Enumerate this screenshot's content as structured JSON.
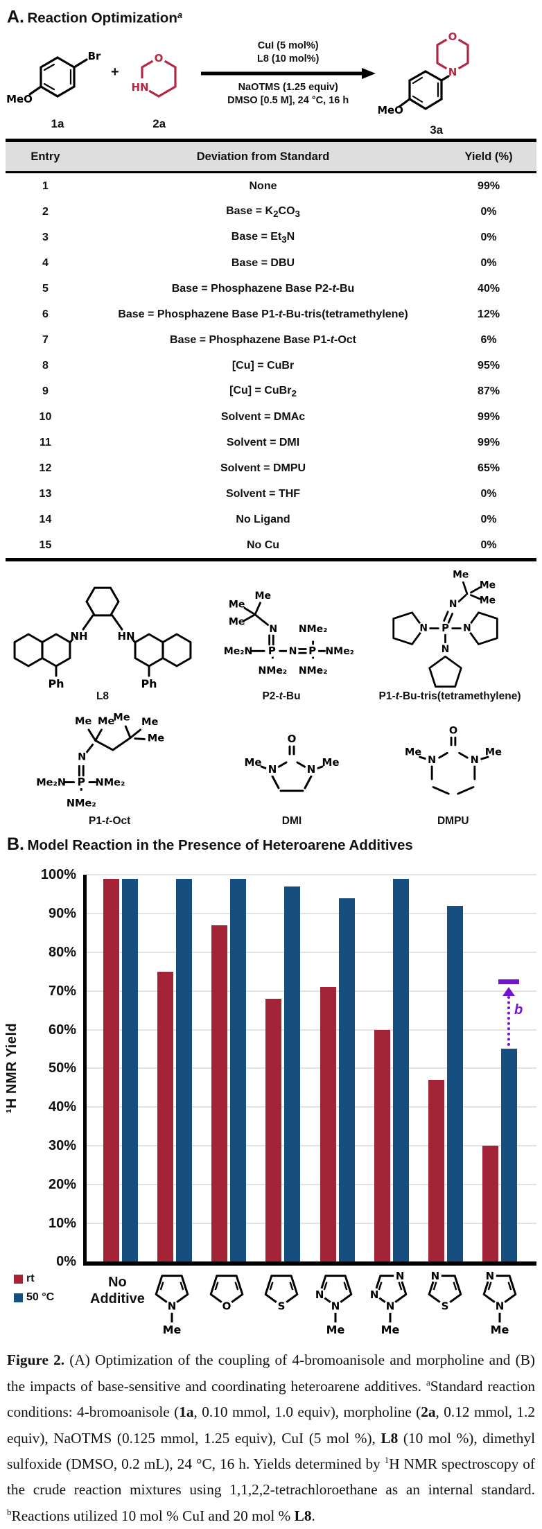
{
  "panelA": {
    "title_letter": "A.",
    "title": "Reaction Optimization",
    "title_superscript": "a",
    "scheme": {
      "reactant1": {
        "label": "1a",
        "atoms": [
          "Br",
          "MeO"
        ]
      },
      "plus": "+",
      "reactant2": {
        "label": "2a",
        "atoms": [
          "O",
          "HN"
        ]
      },
      "conditions_above": [
        "CuI (5 mol%)",
        "L8 (10 mol%)"
      ],
      "conditions_below": [
        "NaOTMS (1.25 equiv)",
        "DMSO [0.5 M], 24 °C, 16 h"
      ],
      "product": {
        "label": "3a",
        "atoms": [
          "MeO",
          "N",
          "O"
        ]
      }
    },
    "table": {
      "headers": [
        "Entry",
        "Deviation from Standard",
        "Yield (%)"
      ],
      "rows": [
        [
          "1",
          "None",
          "99%"
        ],
        [
          "2",
          "Base = K_2_CO_3_",
          "0%"
        ],
        [
          "3",
          "Base = Et_3_N",
          "0%"
        ],
        [
          "4",
          "Base = DBU",
          "0%"
        ],
        [
          "5",
          "Base = Phosphazene Base P2-*t*-Bu",
          "40%"
        ],
        [
          "6",
          "Base = Phosphazene Base P1-*t*-Bu-tris(tetramethylene)",
          "12%"
        ],
        [
          "7",
          "Base = Phosphazene Base P1-*t*-Oct",
          "6%"
        ],
        [
          "8",
          "[Cu] = CuBr",
          "95%"
        ],
        [
          "9",
          "[Cu] = CuBr_2_",
          "87%"
        ],
        [
          "10",
          "Solvent = DMAc",
          "99%"
        ],
        [
          "11",
          "Solvent = DMI",
          "99%"
        ],
        [
          "12",
          "Solvent = DMPU",
          "65%"
        ],
        [
          "13",
          "Solvent = THF",
          "0%"
        ],
        [
          "14",
          "No Ligand",
          "0%"
        ],
        [
          "15",
          "No Cu",
          "0%"
        ]
      ]
    }
  },
  "structures": {
    "items": [
      {
        "id": "l8",
        "caption": "**L8**",
        "atoms": [
          "NH",
          "HN",
          "Ph",
          "Ph"
        ]
      },
      {
        "id": "p2tbu",
        "caption": "**P2-*t*-Bu**",
        "atoms": [
          "Me",
          "Me",
          "Me",
          "N",
          "Me₂N",
          "P",
          "NMe₂",
          "N",
          "P",
          "NMe₂",
          "NMe₂",
          "NMe₂"
        ]
      },
      {
        "id": "p1tbutris",
        "caption": "**P1-*t*-Bu-tris(tetramethylene)**",
        "atoms": [
          "Me",
          "Me",
          "Me",
          "N",
          "N",
          "P",
          "N",
          "N"
        ]
      },
      {
        "id": "p1toct",
        "caption": "**P1-*t*-Oct**",
        "atoms": [
          "Me",
          "Me",
          "Me",
          "Me",
          "Me",
          "N",
          "Me₂N",
          "P",
          "NMe₂",
          "NMe₂"
        ]
      },
      {
        "id": "dmi",
        "caption": "**DMI**",
        "atoms": [
          "O",
          "Me",
          "N",
          "N",
          "Me"
        ]
      },
      {
        "id": "dmpu",
        "caption": "**DMPU**",
        "atoms": [
          "O",
          "Me",
          "N",
          "N",
          "Me"
        ]
      }
    ]
  },
  "panelB": {
    "title_letter": "B.",
    "title": "Model Reaction in the Presence of Heteroarene Additives",
    "chart_data": {
      "type": "bar",
      "ylabel": "¹H NMR Yield",
      "ylim": [
        0,
        100
      ],
      "yticks": [
        "0%",
        "10%",
        "20%",
        "30%",
        "40%",
        "50%",
        "60%",
        "70%",
        "80%",
        "90%",
        "100%"
      ],
      "grid": true,
      "legend_position": "bottom-left",
      "legend": [
        {
          "name": "rt",
          "color": "#A32337"
        },
        {
          "name": "50 °C",
          "color": "#174E80"
        }
      ],
      "categories": [
        {
          "label": "No Additive",
          "type": "text"
        },
        {
          "name": "1-methylpyrrole",
          "ring": {
            "0": "N"
          },
          "methyl": true
        },
        {
          "name": "furan",
          "ring": {
            "0": "O"
          },
          "methyl": false
        },
        {
          "name": "thiophene",
          "ring": {
            "0": "S"
          },
          "methyl": false
        },
        {
          "name": "1-methylpyrazole",
          "ring": {
            "0": "N",
            "1": "N"
          },
          "methyl": true
        },
        {
          "name": "1-methyl-1,2,4-triazole",
          "ring": {
            "0": "N",
            "1": "N",
            "3": "N"
          },
          "methyl": true
        },
        {
          "name": "thiazole",
          "ring": {
            "0": "S",
            "2": "N"
          },
          "methyl": false
        },
        {
          "name": "1-methylimidazole",
          "ring": {
            "0": "N",
            "2": "N"
          },
          "methyl": true
        }
      ],
      "methyl_label": "Me",
      "series": [
        {
          "name": "rt",
          "values": [
            99,
            75,
            87,
            68,
            71,
            60,
            47,
            30
          ]
        },
        {
          "name": "50 °C",
          "values": [
            99,
            99,
            99,
            97,
            94,
            99,
            92,
            55
          ]
        }
      ],
      "annotation": {
        "label": "b",
        "value": 71,
        "on_category": "1-methylimidazole",
        "color": "#7512D2"
      }
    }
  },
  "caption": "**Figure 2.** (A) Optimization of the coupling of 4-bromoanisole and morpholine and (B) the impacts of base-sensitive and coordinating heteroarene additives. ^a^Standard reaction conditions: 4-bromoanisole (**1a**, 0.10 mmol, 1.0 equiv), morpholine (**2a**, 0.12 mmol, 1.2 equiv), NaOTMS (0.125 mmol, 1.25 equiv), CuI (5 mol %), **L8** (10 mol %), dimethyl sulfoxide (DMSO, 0.2 mL), 24 °C, 16 h. Yields determined by ^1^H NMR spectroscopy of the crude reaction mixtures using 1,1,2,2-tetrachloroethane as an internal standard. ^b^Reactions utilized 10 mol % CuI and 20 mol % **L8**.",
  "colors": {
    "structure_red": "#B22843",
    "bar_red": "#A32337",
    "bar_blue": "#174E80",
    "annotation_purple": "#7512D2",
    "table_header_bg": "#DEDEDE",
    "gridline": "#E3E3E3"
  }
}
